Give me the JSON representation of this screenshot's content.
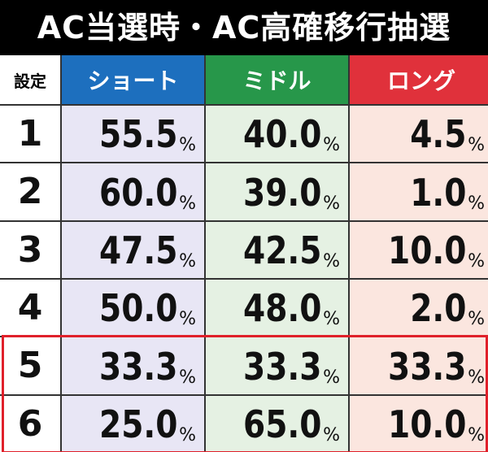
{
  "title": "AC当選時・AC高確移行抽選",
  "table": {
    "header": [
      "設定",
      "ショート",
      "ミドル",
      "ロング"
    ],
    "rows": [
      [
        "1",
        {
          "number": "55.5",
          "unit": "%"
        },
        {
          "number": "40.0",
          "unit": "%"
        },
        {
          "number": "4.5",
          "unit": "%"
        }
      ],
      [
        "2",
        {
          "number": "60.0",
          "unit": "%"
        },
        {
          "number": "39.0",
          "unit": "%"
        },
        {
          "number": "1.0",
          "unit": "%"
        }
      ],
      [
        "3",
        {
          "number": "47.5",
          "unit": "%"
        },
        {
          "number": "42.5",
          "unit": "%"
        },
        {
          "number": "10.0",
          "unit": "%"
        }
      ],
      [
        "4",
        {
          "number": "50.0",
          "unit": "%"
        },
        {
          "number": "48.0",
          "unit": "%"
        },
        {
          "number": "2.0",
          "unit": "%"
        }
      ],
      [
        "5",
        {
          "number": "33.3",
          "unit": "%"
        },
        {
          "number": "33.3",
          "unit": "%"
        },
        {
          "number": "33.3",
          "unit": "%"
        }
      ],
      [
        "6",
        {
          "number": "25.0",
          "unit": "%"
        },
        {
          "number": "65.0",
          "unit": "%"
        },
        {
          "number": "10.0",
          "unit": "%"
        }
      ]
    ]
  }
}
